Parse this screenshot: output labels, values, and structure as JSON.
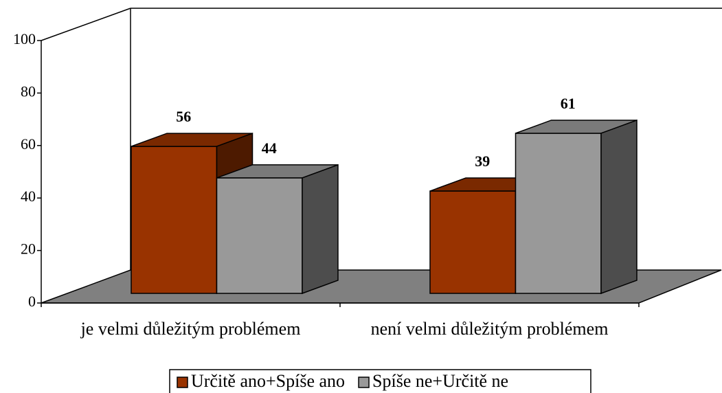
{
  "chart_data": {
    "type": "bar",
    "categories": [
      "je velmi důležitým problémem",
      "není velmi důležitým problémem"
    ],
    "series": [
      {
        "name": "Určitě ano+Spíše ano",
        "color": "#993300",
        "values": [
          56,
          39
        ]
      },
      {
        "name": "Spíše ne+Určitě ne",
        "color": "#999999",
        "values": [
          44,
          61
        ]
      }
    ],
    "ylim": [
      0,
      100
    ],
    "yticks": [
      0,
      20,
      40,
      60,
      80,
      100
    ],
    "grid": false
  }
}
